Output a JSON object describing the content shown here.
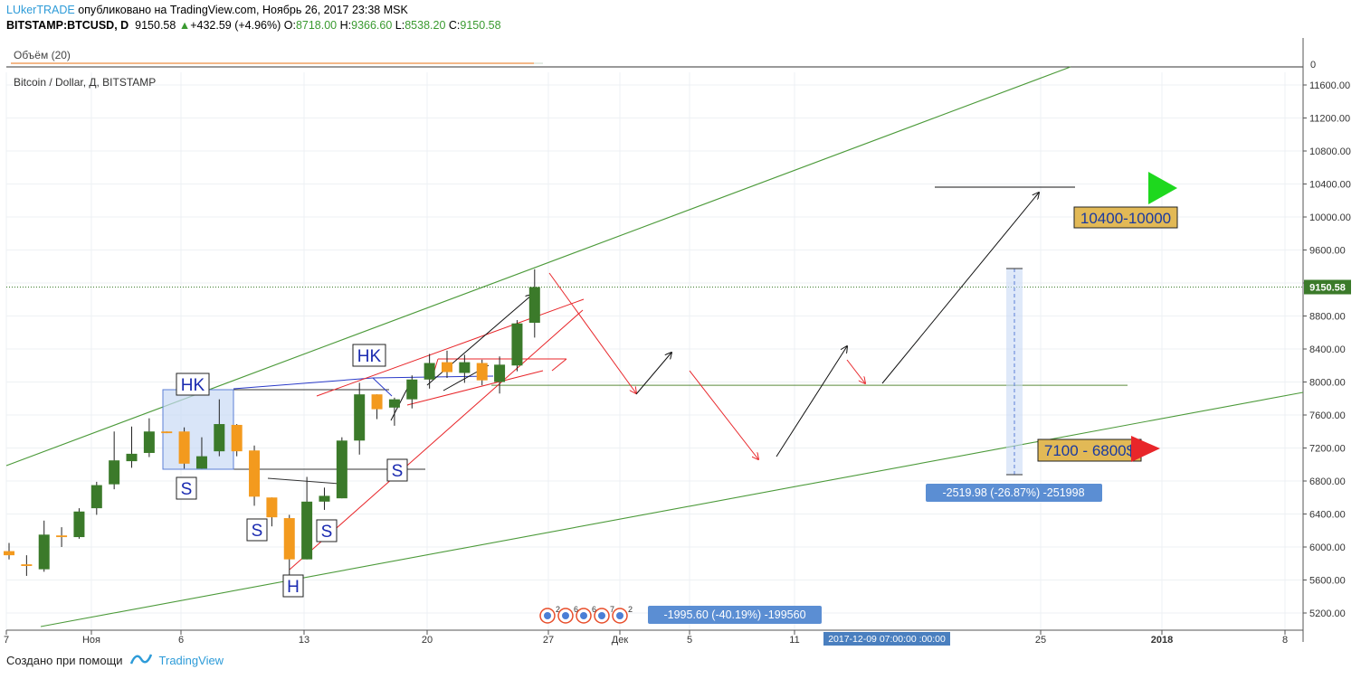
{
  "header": {
    "author": "LUkerTRADE",
    "published": "опубликовано на TradingView.com, Ноябрь 26, 2017 23:38 MSK",
    "symbol": "BITSTAMP:BTCUSD, D",
    "last": "9150.58",
    "change": "+432.59 (+4.96%)",
    "open_label": "O:",
    "open": "8718.00",
    "high_label": "H:",
    "high": "9366.60",
    "low_label": "L:",
    "low": "8538.20",
    "close_label": "C:",
    "close": "9150.58"
  },
  "volume_pane": {
    "label": "Объём (20)",
    "axis_zero": "0"
  },
  "main_title": "Bitcoin / Dollar, Д, BITSTAMP",
  "price_tag": "9150.58",
  "footer": {
    "created_with": "Создано при помощи",
    "brand": "TradingView"
  },
  "colors": {
    "up": "#3b7a2a",
    "down": "#f39a1e",
    "channel": "#4c9a3a",
    "support": "#5a8a3a",
    "red_line": "#e8262a",
    "target_up": "#1ed81e",
    "target_down": "#e8262a",
    "label_box": "#e2b956",
    "measure": "#5b8ed3"
  },
  "chart_data": {
    "type": "candlestick",
    "symbol": "BITSTAMP:BTCUSD",
    "timeframe": "D",
    "y_ticks": [
      5200,
      5600,
      6000,
      6400,
      6800,
      7200,
      7600,
      8000,
      8400,
      8800,
      9200,
      9600,
      10000,
      10400,
      10800,
      11200,
      11600
    ],
    "ylim": [
      4950,
      11850
    ],
    "x_tick_labels": [
      "7",
      "Ноя",
      "6",
      "13",
      "20",
      "27",
      "Дек",
      "5",
      "11",
      "25",
      "2018",
      "8"
    ],
    "crosshair_time": "2017-12-09 07:00:00 :00:00",
    "candles": [
      {
        "o": 5950,
        "h": 6050,
        "l": 5850,
        "c": 5900
      },
      {
        "o": 5790,
        "h": 5900,
        "l": 5650,
        "c": 5770
      },
      {
        "o": 5730,
        "h": 6320,
        "l": 5700,
        "c": 6150
      },
      {
        "o": 6140,
        "h": 6240,
        "l": 6000,
        "c": 6120
      },
      {
        "o": 6120,
        "h": 6470,
        "l": 6100,
        "c": 6430
      },
      {
        "o": 6470,
        "h": 6790,
        "l": 6390,
        "c": 6750
      },
      {
        "o": 6760,
        "h": 7400,
        "l": 6700,
        "c": 7050
      },
      {
        "o": 7040,
        "h": 7460,
        "l": 6960,
        "c": 7130
      },
      {
        "o": 7140,
        "h": 7560,
        "l": 7090,
        "c": 7400
      },
      {
        "o": 7400,
        "h": 7400,
        "l": 7380,
        "c": 7380
      },
      {
        "o": 7400,
        "h": 7450,
        "l": 6950,
        "c": 7010
      },
      {
        "o": 6950,
        "h": 7330,
        "l": 6950,
        "c": 7100
      },
      {
        "o": 7160,
        "h": 7790,
        "l": 7100,
        "c": 7490
      },
      {
        "o": 7480,
        "h": 7490,
        "l": 7100,
        "c": 7160
      },
      {
        "o": 7170,
        "h": 7230,
        "l": 6500,
        "c": 6610
      },
      {
        "o": 6600,
        "h": 6600,
        "l": 6250,
        "c": 6360
      },
      {
        "o": 6350,
        "h": 6390,
        "l": 5520,
        "c": 5850
      },
      {
        "o": 5850,
        "h": 6850,
        "l": 5850,
        "c": 6550
      },
      {
        "o": 6550,
        "h": 6720,
        "l": 6450,
        "c": 6620
      },
      {
        "o": 6590,
        "h": 7330,
        "l": 6590,
        "c": 7290
      },
      {
        "o": 7290,
        "h": 7990,
        "l": 7120,
        "c": 7850
      },
      {
        "o": 7850,
        "h": 7850,
        "l": 7550,
        "c": 7670
      },
      {
        "o": 7690,
        "h": 7810,
        "l": 7470,
        "c": 7790
      },
      {
        "o": 7790,
        "h": 8080,
        "l": 7680,
        "c": 8030
      },
      {
        "o": 8030,
        "h": 8340,
        "l": 7920,
        "c": 8230
      },
      {
        "o": 8240,
        "h": 8380,
        "l": 8050,
        "c": 8120
      },
      {
        "o": 8110,
        "h": 8330,
        "l": 7990,
        "c": 8240
      },
      {
        "o": 8230,
        "h": 8270,
        "l": 7960,
        "c": 8020
      },
      {
        "o": 8000,
        "h": 8310,
        "l": 7860,
        "c": 8210
      },
      {
        "o": 8200,
        "h": 8750,
        "l": 8130,
        "c": 8710
      },
      {
        "o": 8718,
        "h": 9366.6,
        "l": 8538.2,
        "c": 9150.58
      }
    ],
    "price_levels": {
      "support": 7960,
      "upper_line": 10360
    },
    "annotations": [
      {
        "text": "HK",
        "kind": "pattern_label"
      },
      {
        "text": "S",
        "kind": "pattern_label"
      },
      {
        "text": "S",
        "kind": "pattern_label"
      },
      {
        "text": "H",
        "kind": "pattern_label"
      },
      {
        "text": "S",
        "kind": "pattern_label"
      },
      {
        "text": "HK",
        "kind": "pattern_label"
      },
      {
        "text": "S",
        "kind": "pattern_label"
      },
      {
        "text": "10400-10000",
        "kind": "target_up"
      },
      {
        "text": "7100 - 6800$",
        "kind": "target_down"
      },
      {
        "text": "-2519.98 (-26.87%) -251998",
        "kind": "measure"
      },
      {
        "text": "-1995.60 (-40.19%) -199560",
        "kind": "measure"
      }
    ],
    "event_badges": [
      "2",
      "6",
      "6",
      "7",
      "2"
    ]
  }
}
